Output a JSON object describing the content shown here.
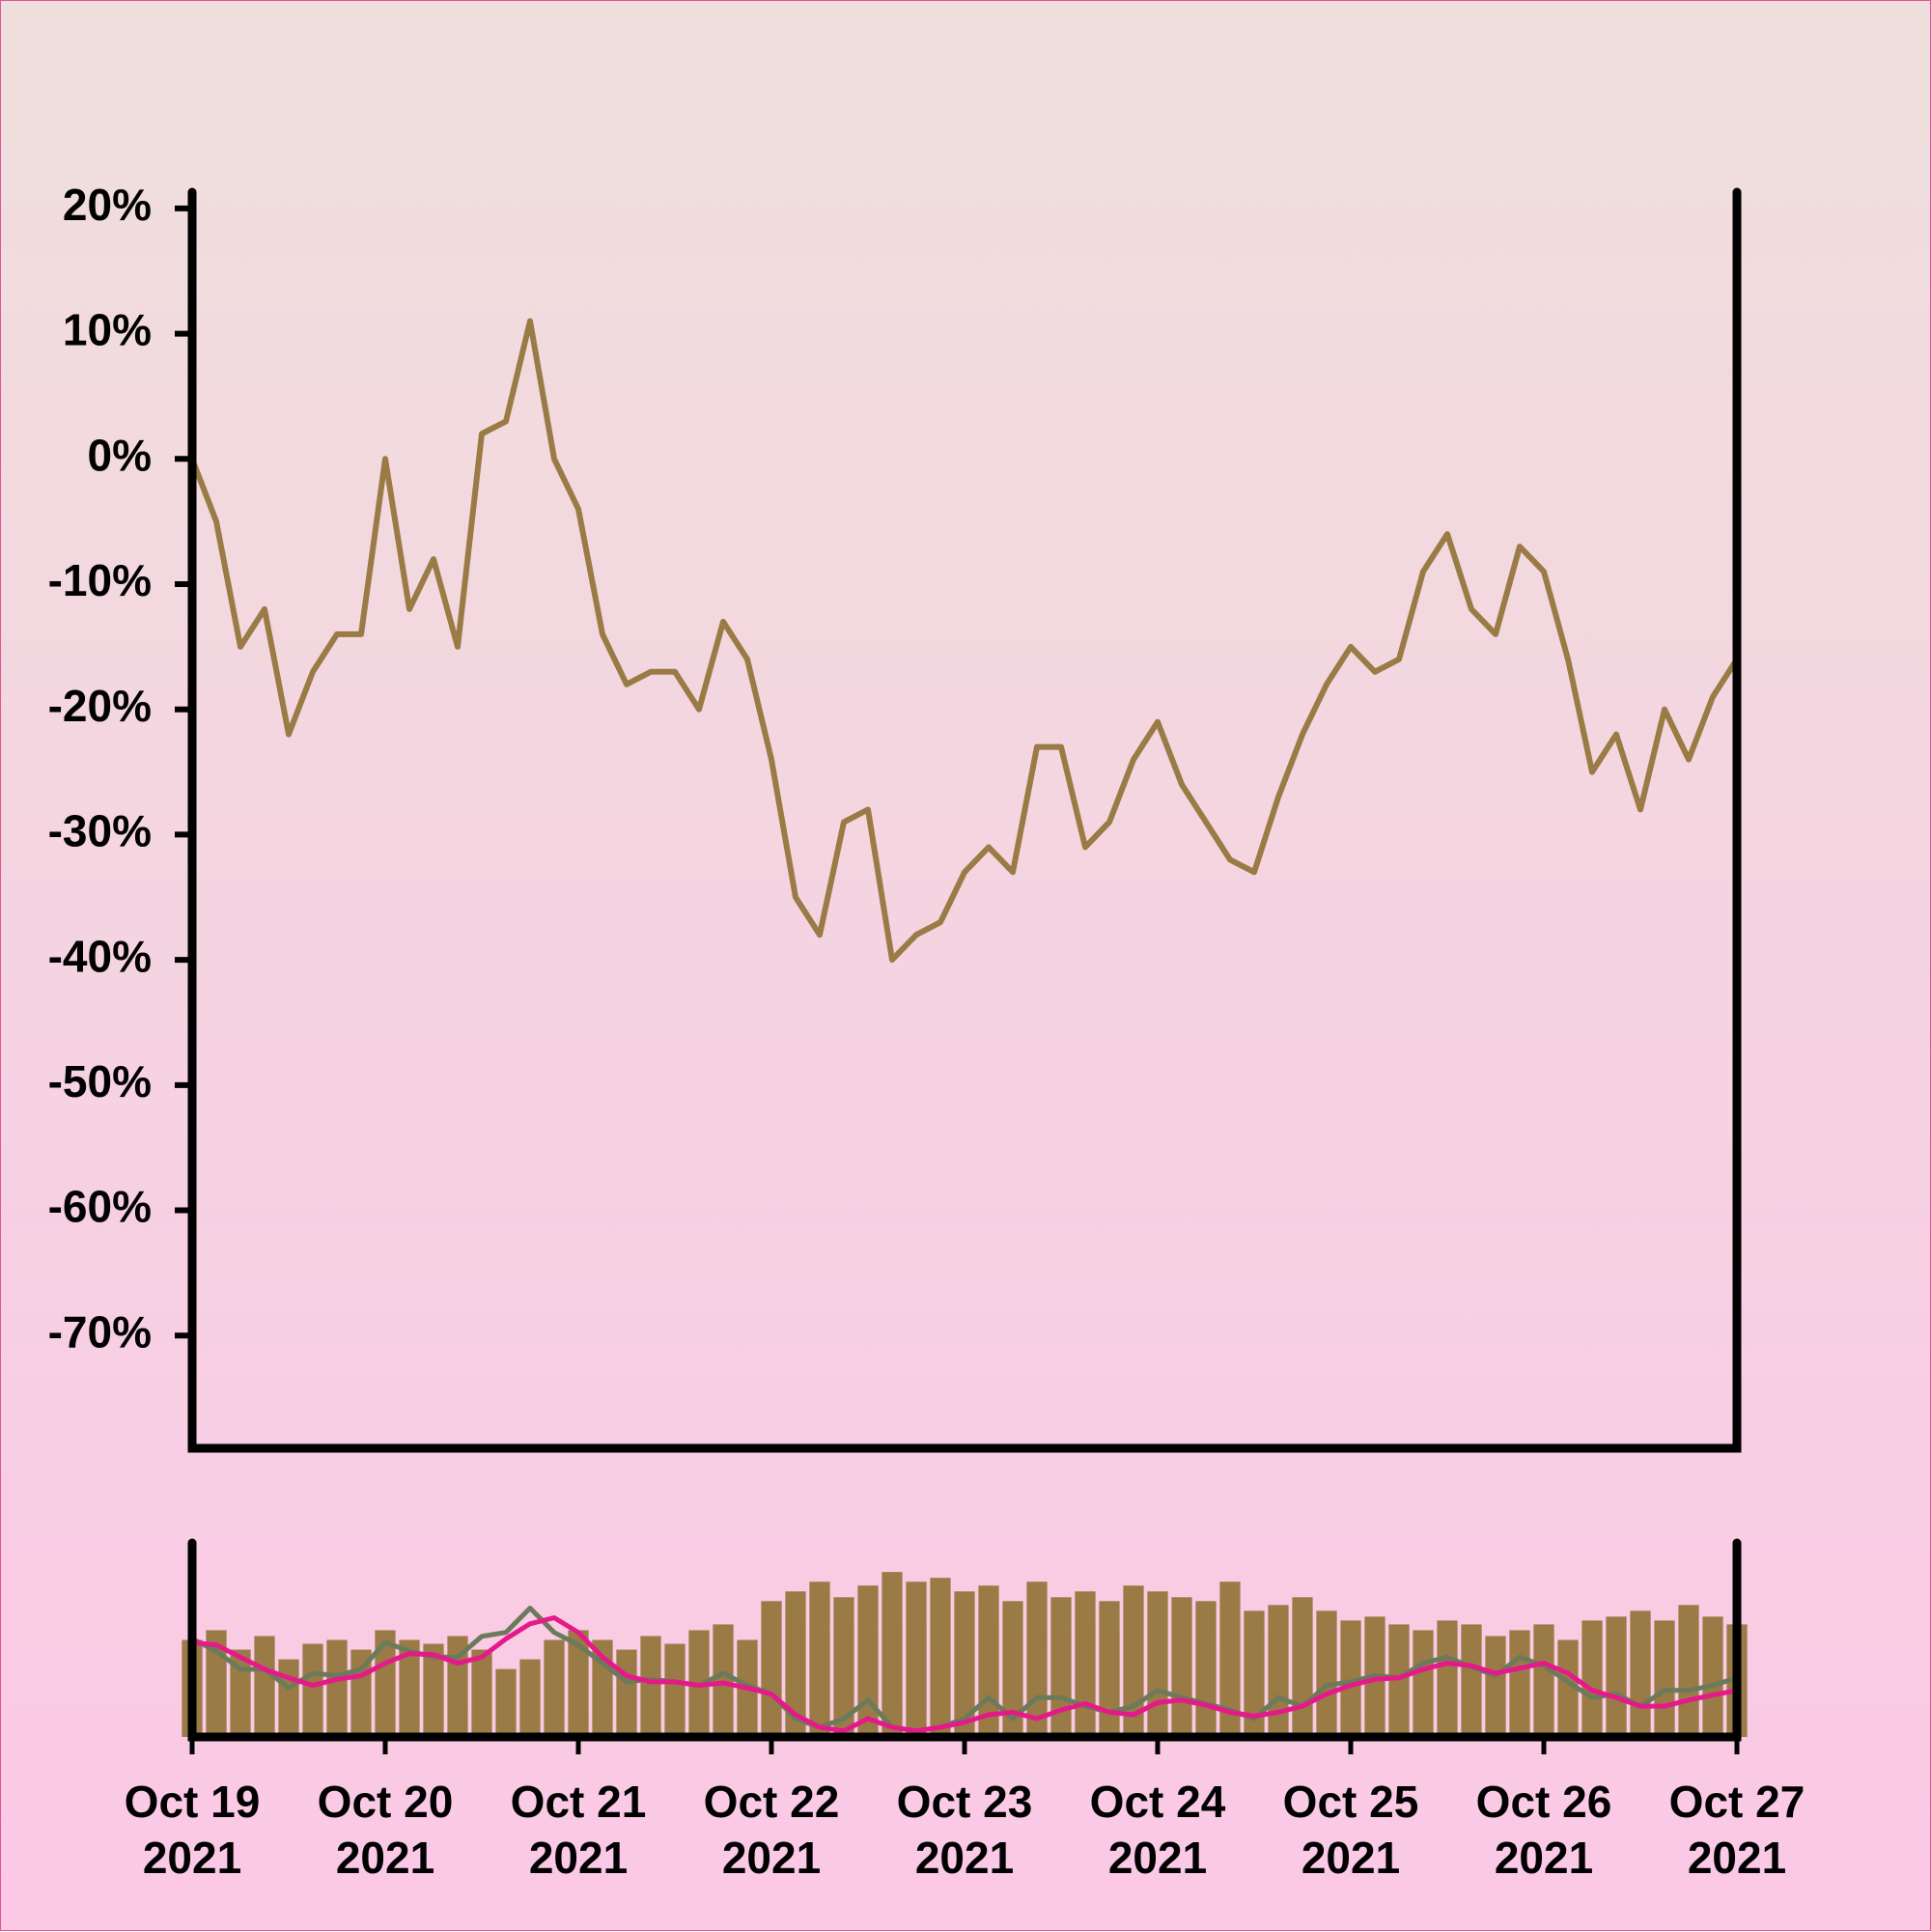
{
  "chart_data": [
    {
      "type": "line",
      "color": "#9a7b45",
      "x": [
        "2021-10-19T00:00",
        "2021-10-19T03:00",
        "2021-10-19T06:00",
        "2021-10-19T09:00",
        "2021-10-19T12:00",
        "2021-10-19T15:00",
        "2021-10-19T18:00",
        "2021-10-19T21:00",
        "2021-10-20T00:00",
        "2021-10-20T03:00",
        "2021-10-20T06:00",
        "2021-10-20T09:00",
        "2021-10-20T12:00",
        "2021-10-20T15:00",
        "2021-10-20T18:00",
        "2021-10-20T21:00",
        "2021-10-21T00:00",
        "2021-10-21T03:00",
        "2021-10-21T06:00",
        "2021-10-21T09:00",
        "2021-10-21T12:00",
        "2021-10-21T15:00",
        "2021-10-21T18:00",
        "2021-10-21T21:00",
        "2021-10-22T00:00",
        "2021-10-22T03:00",
        "2021-10-22T06:00",
        "2021-10-22T09:00",
        "2021-10-22T12:00",
        "2021-10-22T15:00",
        "2021-10-22T18:00",
        "2021-10-22T21:00",
        "2021-10-23T00:00",
        "2021-10-23T03:00",
        "2021-10-23T06:00",
        "2021-10-23T09:00",
        "2021-10-23T12:00",
        "2021-10-23T15:00",
        "2021-10-23T18:00",
        "2021-10-23T21:00",
        "2021-10-24T00:00",
        "2021-10-24T03:00",
        "2021-10-24T06:00",
        "2021-10-24T09:00",
        "2021-10-24T12:00",
        "2021-10-24T15:00",
        "2021-10-24T18:00",
        "2021-10-24T21:00",
        "2021-10-25T00:00",
        "2021-10-25T03:00",
        "2021-10-25T06:00",
        "2021-10-25T09:00",
        "2021-10-25T12:00",
        "2021-10-25T15:00",
        "2021-10-25T18:00",
        "2021-10-25T21:00",
        "2021-10-26T00:00",
        "2021-10-26T03:00",
        "2021-10-26T06:00",
        "2021-10-26T09:00",
        "2021-10-26T12:00",
        "2021-10-26T15:00",
        "2021-10-26T18:00",
        "2021-10-26T21:00",
        "2021-10-27T00:00"
      ],
      "values": [
        0,
        -5,
        -15,
        -12,
        -22,
        -17,
        -14,
        -14,
        0,
        -12,
        -8,
        -15,
        2,
        3,
        11,
        0,
        -4,
        -14,
        -18,
        -17,
        -17,
        -20,
        -13,
        -16,
        -24,
        -35,
        -38,
        -29,
        -28,
        -40,
        -38,
        -37,
        -33,
        -31,
        -33,
        -23,
        -23,
        -31,
        -29,
        -24,
        -21,
        -26,
        -29,
        -32,
        -33,
        -27,
        -22,
        -18,
        -15,
        -17,
        -16,
        -9,
        -6,
        -12,
        -14,
        -7,
        -9,
        -16,
        -25,
        -22,
        -28,
        -20,
        -24,
        -19,
        -16
      ],
      "xlim": [
        "2021-10-19T00:00",
        "2021-10-27T00:00"
      ],
      "ylim": [
        -79,
        21.3
      ],
      "yticks": [
        {
          "value": 20,
          "label": "20%"
        },
        {
          "value": 10,
          "label": "10%"
        },
        {
          "value": 0,
          "label": "0%"
        },
        {
          "value": -10,
          "label": "-10%"
        },
        {
          "value": -20,
          "label": "-20%"
        },
        {
          "value": -30,
          "label": "-30%"
        },
        {
          "value": -40,
          "label": "-40%"
        },
        {
          "value": -50,
          "label": "-50%"
        },
        {
          "value": -60,
          "label": "-60%"
        },
        {
          "value": -70,
          "label": "-70%"
        }
      ]
    },
    {
      "type": "bar",
      "color": "#9a7b45",
      "values": [
        50,
        55,
        45,
        52,
        40,
        48,
        50,
        45,
        55,
        50,
        48,
        52,
        45,
        35,
        40,
        50,
        55,
        50,
        45,
        52,
        48,
        55,
        58,
        50,
        70,
        75,
        80,
        72,
        78,
        85,
        80,
        82,
        75,
        78,
        70,
        80,
        72,
        75,
        70,
        78,
        75,
        72,
        70,
        80,
        65,
        68,
        72,
        65,
        60,
        62,
        58,
        55,
        60,
        58,
        52,
        55,
        58,
        50,
        60,
        62,
        65,
        60,
        68,
        62,
        58
      ],
      "ylim": [
        0,
        100
      ],
      "y2lim": [
        -42,
        28
      ],
      "series": [
        {
          "color": "#6b7a5a",
          "axis": "y2",
          "values": [
            -6.6,
            -11,
            -17.6,
            -17.6,
            -24.3,
            -19,
            -19.9,
            -17.6,
            -7.9,
            -11,
            -13.2,
            -13.2,
            -5.7,
            -4.3,
            4.5,
            -4.3,
            -8.8,
            -15.4,
            -22.1,
            -21.2,
            -22.1,
            -23.4,
            -19,
            -23.4,
            -26.5,
            -35.4,
            -38.5,
            -35.4,
            -28.7,
            -38.5,
            -39.8,
            -38.5,
            -35.4,
            -27.8,
            -35.4,
            -27.8,
            -27.8,
            -30.9,
            -33.1,
            -30.9,
            -25.2,
            -27.8,
            -30,
            -32.3,
            -35.4,
            -27.8,
            -30.9,
            -23.4,
            -22.1,
            -19.9,
            -20.7,
            -15.4,
            -13.2,
            -16.7,
            -19.9,
            -13.2,
            -16.3,
            -22.1,
            -27.8,
            -26.5,
            -30.9,
            -25.2,
            -25.2,
            -23.4,
            -20.7
          ]
        },
        {
          "color": "#e6198a",
          "axis": "y2",
          "values": [
            -7.9,
            -8.8,
            -13.2,
            -17.6,
            -20.7,
            -23.4,
            -21.2,
            -19.9,
            -15.4,
            -11.9,
            -12.3,
            -15.4,
            -13.2,
            -6.6,
            -1.2,
            1,
            -4.3,
            -13.2,
            -19.9,
            -22.1,
            -22.1,
            -23.4,
            -22.5,
            -24.3,
            -26.5,
            -34,
            -38.5,
            -39.8,
            -35.4,
            -38.5,
            -39.8,
            -38.5,
            -36.7,
            -34,
            -33.1,
            -35.4,
            -32.3,
            -30,
            -33.1,
            -34,
            -29.6,
            -28.7,
            -30.5,
            -33.1,
            -34.5,
            -33.1,
            -30.9,
            -26.5,
            -23.4,
            -21.2,
            -20.7,
            -17.6,
            -15.4,
            -16.3,
            -19,
            -17.2,
            -15.4,
            -19,
            -25.2,
            -27.8,
            -30.9,
            -30.9,
            -28.7,
            -26.9,
            -25.2
          ]
        }
      ],
      "xticks": [
        {
          "value": "2021-10-19T00:00",
          "label": "Oct 19\n2021"
        },
        {
          "value": "2021-10-20T00:00",
          "label": "Oct 20\n2021"
        },
        {
          "value": "2021-10-21T00:00",
          "label": "Oct 21\n2021"
        },
        {
          "value": "2021-10-22T00:00",
          "label": "Oct 22\n2021"
        },
        {
          "value": "2021-10-23T00:00",
          "label": "Oct 23\n2021"
        },
        {
          "value": "2021-10-24T00:00",
          "label": "Oct 24\n2021"
        },
        {
          "value": "2021-10-25T00:00",
          "label": "Oct 25\n2021"
        },
        {
          "value": "2021-10-26T00:00",
          "label": "Oct 26\n2021"
        },
        {
          "value": "2021-10-27T00:00",
          "label": "Oct 27\n2021"
        }
      ]
    }
  ]
}
